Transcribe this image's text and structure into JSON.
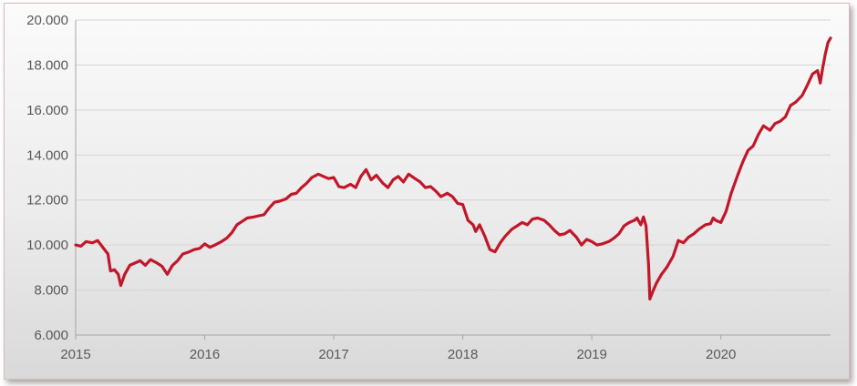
{
  "chart_data": {
    "type": "line",
    "title": "",
    "xlabel": "",
    "ylabel": "",
    "xlim": [
      2015.0,
      2020.85
    ],
    "ylim": [
      6000,
      20000
    ],
    "grid": true,
    "legend": "none",
    "x_ticks": [
      2015,
      2016,
      2017,
      2018,
      2019,
      2020
    ],
    "x_tick_labels": [
      "2015",
      "2016",
      "2017",
      "2018",
      "2019",
      "2020"
    ],
    "y_ticks": [
      6000,
      8000,
      10000,
      12000,
      14000,
      16000,
      18000,
      20000
    ],
    "y_tick_labels": [
      "6.000",
      "8.000",
      "10.000",
      "12.000",
      "14.000",
      "16.000",
      "18.000",
      "20.000"
    ],
    "series": [
      {
        "color": "#c0182a",
        "points": [
          [
            2015.0,
            10000
          ],
          [
            2015.04,
            9950
          ],
          [
            2015.08,
            10150
          ],
          [
            2015.13,
            10100
          ],
          [
            2015.17,
            10200
          ],
          [
            2015.21,
            9900
          ],
          [
            2015.25,
            9600
          ],
          [
            2015.27,
            8850
          ],
          [
            2015.3,
            8900
          ],
          [
            2015.33,
            8700
          ],
          [
            2015.35,
            8200
          ],
          [
            2015.38,
            8700
          ],
          [
            2015.42,
            9100
          ],
          [
            2015.46,
            9200
          ],
          [
            2015.5,
            9300
          ],
          [
            2015.54,
            9100
          ],
          [
            2015.58,
            9350
          ],
          [
            2015.63,
            9200
          ],
          [
            2015.67,
            9050
          ],
          [
            2015.71,
            8700
          ],
          [
            2015.75,
            9100
          ],
          [
            2015.79,
            9300
          ],
          [
            2015.83,
            9600
          ],
          [
            2015.88,
            9700
          ],
          [
            2015.92,
            9800
          ],
          [
            2015.96,
            9850
          ],
          [
            2016.0,
            10050
          ],
          [
            2016.04,
            9900
          ],
          [
            2016.08,
            10000
          ],
          [
            2016.13,
            10150
          ],
          [
            2016.17,
            10300
          ],
          [
            2016.21,
            10550
          ],
          [
            2016.25,
            10900
          ],
          [
            2016.29,
            11050
          ],
          [
            2016.33,
            11200
          ],
          [
            2016.38,
            11250
          ],
          [
            2016.42,
            11300
          ],
          [
            2016.46,
            11350
          ],
          [
            2016.5,
            11650
          ],
          [
            2016.54,
            11900
          ],
          [
            2016.58,
            11950
          ],
          [
            2016.63,
            12050
          ],
          [
            2016.67,
            12250
          ],
          [
            2016.71,
            12300
          ],
          [
            2016.75,
            12550
          ],
          [
            2016.79,
            12750
          ],
          [
            2016.83,
            13000
          ],
          [
            2016.88,
            13150
          ],
          [
            2016.92,
            13050
          ],
          [
            2016.96,
            12950
          ],
          [
            2017.0,
            13000
          ],
          [
            2017.04,
            12600
          ],
          [
            2017.08,
            12550
          ],
          [
            2017.13,
            12700
          ],
          [
            2017.17,
            12550
          ],
          [
            2017.21,
            13050
          ],
          [
            2017.25,
            13350
          ],
          [
            2017.29,
            12900
          ],
          [
            2017.33,
            13100
          ],
          [
            2017.38,
            12750
          ],
          [
            2017.42,
            12550
          ],
          [
            2017.46,
            12900
          ],
          [
            2017.5,
            13050
          ],
          [
            2017.54,
            12800
          ],
          [
            2017.58,
            13150
          ],
          [
            2017.63,
            12950
          ],
          [
            2017.67,
            12800
          ],
          [
            2017.71,
            12550
          ],
          [
            2017.75,
            12600
          ],
          [
            2017.79,
            12400
          ],
          [
            2017.83,
            12150
          ],
          [
            2017.88,
            12300
          ],
          [
            2017.92,
            12150
          ],
          [
            2017.96,
            11850
          ],
          [
            2018.0,
            11800
          ],
          [
            2018.04,
            11100
          ],
          [
            2018.08,
            10900
          ],
          [
            2018.1,
            10600
          ],
          [
            2018.13,
            10900
          ],
          [
            2018.17,
            10400
          ],
          [
            2018.21,
            9800
          ],
          [
            2018.25,
            9700
          ],
          [
            2018.29,
            10100
          ],
          [
            2018.33,
            10400
          ],
          [
            2018.38,
            10700
          ],
          [
            2018.42,
            10850
          ],
          [
            2018.46,
            11000
          ],
          [
            2018.5,
            10900
          ],
          [
            2018.54,
            11150
          ],
          [
            2018.58,
            11200
          ],
          [
            2018.63,
            11100
          ],
          [
            2018.67,
            10900
          ],
          [
            2018.71,
            10650
          ],
          [
            2018.75,
            10450
          ],
          [
            2018.79,
            10500
          ],
          [
            2018.83,
            10650
          ],
          [
            2018.88,
            10350
          ],
          [
            2018.92,
            10000
          ],
          [
            2018.96,
            10250
          ],
          [
            2019.0,
            10150
          ],
          [
            2019.04,
            10000
          ],
          [
            2019.08,
            10050
          ],
          [
            2019.13,
            10150
          ],
          [
            2019.17,
            10300
          ],
          [
            2019.21,
            10500
          ],
          [
            2019.25,
            10850
          ],
          [
            2019.29,
            11000
          ],
          [
            2019.33,
            11100
          ],
          [
            2019.35,
            11200
          ],
          [
            2019.38,
            10900
          ],
          [
            2019.4,
            11250
          ],
          [
            2019.42,
            10850
          ],
          [
            2019.44,
            9100
          ],
          [
            2019.45,
            7600
          ],
          [
            2019.47,
            7900
          ],
          [
            2019.5,
            8300
          ],
          [
            2019.54,
            8700
          ],
          [
            2019.58,
            9000
          ],
          [
            2019.63,
            9500
          ],
          [
            2019.67,
            10200
          ],
          [
            2019.71,
            10100
          ],
          [
            2019.75,
            10350
          ],
          [
            2019.79,
            10500
          ],
          [
            2019.83,
            10700
          ],
          [
            2019.88,
            10900
          ],
          [
            2019.92,
            10950
          ],
          [
            2019.94,
            11200
          ],
          [
            2019.96,
            11100
          ],
          [
            2020.0,
            11000
          ],
          [
            2020.04,
            11500
          ],
          [
            2020.08,
            12300
          ],
          [
            2020.13,
            13100
          ],
          [
            2020.17,
            13700
          ],
          [
            2020.21,
            14200
          ],
          [
            2020.25,
            14400
          ],
          [
            2020.29,
            14900
          ],
          [
            2020.33,
            15300
          ],
          [
            2020.38,
            15100
          ],
          [
            2020.42,
            15400
          ],
          [
            2020.46,
            15500
          ],
          [
            2020.5,
            15700
          ],
          [
            2020.54,
            16200
          ],
          [
            2020.58,
            16350
          ],
          [
            2020.63,
            16650
          ],
          [
            2020.67,
            17100
          ],
          [
            2020.71,
            17600
          ],
          [
            2020.75,
            17750
          ],
          [
            2020.77,
            17200
          ],
          [
            2020.79,
            17900
          ],
          [
            2020.81,
            18500
          ],
          [
            2020.83,
            19000
          ],
          [
            2020.85,
            19200
          ]
        ]
      }
    ]
  }
}
